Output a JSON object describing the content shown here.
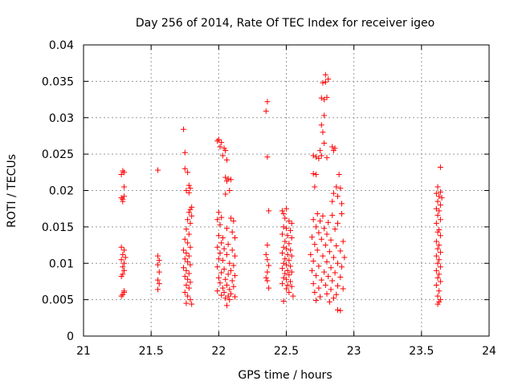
{
  "chart_data": {
    "type": "scatter",
    "title": "Day 256 of 2014, Rate Of TEC Index for receiver igeo",
    "xlabel": "GPS time / hours",
    "ylabel": "ROTI / TECUs",
    "xlim": [
      21,
      24
    ],
    "ylim": [
      0,
      0.04
    ],
    "xticks": [
      21,
      21.5,
      22,
      22.5,
      23,
      23.5,
      24
    ],
    "xtick_labels": [
      "21",
      "21.5",
      "22",
      "22.5",
      "23",
      "23.5",
      "24"
    ],
    "yticks": [
      0,
      0.005,
      0.01,
      0.015,
      0.02,
      0.025,
      0.03,
      0.035,
      0.04
    ],
    "ytick_labels": [
      "0",
      "0.005",
      "0.01",
      "0.015",
      "0.02",
      "0.025",
      "0.03",
      "0.035",
      "0.04"
    ],
    "grid": true,
    "marker": "+",
    "marker_color": "#ff0000",
    "series": [
      {
        "name": "ROTI",
        "points": [
          [
            21.28,
            0.0222
          ],
          [
            21.3,
            0.0225
          ],
          [
            21.29,
            0.0227
          ],
          [
            21.3,
            0.0205
          ],
          [
            21.28,
            0.019
          ],
          [
            21.29,
            0.0188
          ],
          [
            21.3,
            0.0192
          ],
          [
            21.29,
            0.0185
          ],
          [
            21.28,
            0.0122
          ],
          [
            21.3,
            0.0118
          ],
          [
            21.29,
            0.0112
          ],
          [
            21.31,
            0.0108
          ],
          [
            21.28,
            0.0105
          ],
          [
            21.3,
            0.01
          ],
          [
            21.29,
            0.0095
          ],
          [
            21.3,
            0.009
          ],
          [
            21.29,
            0.0085
          ],
          [
            21.28,
            0.0082
          ],
          [
            21.3,
            0.006
          ],
          [
            21.29,
            0.0057
          ],
          [
            21.28,
            0.0055
          ],
          [
            21.3,
            0.0062
          ],
          [
            21.55,
            0.0228
          ],
          [
            21.55,
            0.011
          ],
          [
            21.56,
            0.0104
          ],
          [
            21.55,
            0.0098
          ],
          [
            21.56,
            0.0088
          ],
          [
            21.55,
            0.0077
          ],
          [
            21.56,
            0.0072
          ],
          [
            21.55,
            0.0064
          ],
          [
            21.74,
            0.0284
          ],
          [
            21.75,
            0.0252
          ],
          [
            21.75,
            0.023
          ],
          [
            21.77,
            0.0225
          ],
          [
            21.78,
            0.0207
          ],
          [
            21.79,
            0.0203
          ],
          [
            21.76,
            0.02
          ],
          [
            21.78,
            0.0197
          ],
          [
            21.8,
            0.0177
          ],
          [
            21.79,
            0.0174
          ],
          [
            21.78,
            0.017
          ],
          [
            21.8,
            0.0165
          ],
          [
            21.77,
            0.016
          ],
          [
            21.79,
            0.0155
          ],
          [
            21.76,
            0.0147
          ],
          [
            21.78,
            0.014
          ],
          [
            21.75,
            0.0133
          ],
          [
            21.77,
            0.0128
          ],
          [
            21.79,
            0.0122
          ],
          [
            21.74,
            0.0118
          ],
          [
            21.76,
            0.0114
          ],
          [
            21.78,
            0.011
          ],
          [
            21.75,
            0.0106
          ],
          [
            21.77,
            0.0102
          ],
          [
            21.79,
            0.0098
          ],
          [
            21.74,
            0.0094
          ],
          [
            21.76,
            0.009
          ],
          [
            21.78,
            0.0086
          ],
          [
            21.75,
            0.0082
          ],
          [
            21.77,
            0.0078
          ],
          [
            21.79,
            0.0074
          ],
          [
            21.76,
            0.007
          ],
          [
            21.78,
            0.0066
          ],
          [
            21.75,
            0.006
          ],
          [
            21.77,
            0.0055
          ],
          [
            21.79,
            0.005
          ],
          [
            21.76,
            0.0045
          ],
          [
            21.8,
            0.0044
          ],
          [
            21.99,
            0.0268
          ],
          [
            22.0,
            0.027
          ],
          [
            22.02,
            0.0266
          ],
          [
            22.01,
            0.026
          ],
          [
            22.04,
            0.0258
          ],
          [
            22.05,
            0.0255
          ],
          [
            22.03,
            0.0248
          ],
          [
            22.06,
            0.0242
          ],
          [
            22.05,
            0.0218
          ],
          [
            22.07,
            0.0216
          ],
          [
            22.09,
            0.0215
          ],
          [
            22.06,
            0.0213
          ],
          [
            22.08,
            0.02
          ],
          [
            22.05,
            0.0195
          ],
          [
            22.0,
            0.017
          ],
          [
            21.99,
            0.016
          ],
          [
            22.02,
            0.0163
          ],
          [
            22.09,
            0.0162
          ],
          [
            22.11,
            0.0158
          ],
          [
            22.01,
            0.0153
          ],
          [
            22.06,
            0.0148
          ],
          [
            22.1,
            0.0143
          ],
          [
            22.0,
            0.0138
          ],
          [
            22.03,
            0.0135
          ],
          [
            22.12,
            0.0135
          ],
          [
            22.02,
            0.0128
          ],
          [
            22.07,
            0.0126
          ],
          [
            21.99,
            0.0122
          ],
          [
            22.04,
            0.012
          ],
          [
            22.1,
            0.0118
          ],
          [
            22.01,
            0.0114
          ],
          [
            22.06,
            0.0112
          ],
          [
            22.12,
            0.011
          ],
          [
            22.0,
            0.0106
          ],
          [
            22.03,
            0.0104
          ],
          [
            22.08,
            0.01
          ],
          [
            22.11,
            0.0097
          ],
          [
            21.99,
            0.0095
          ],
          [
            22.04,
            0.0092
          ],
          [
            22.09,
            0.009
          ],
          [
            22.02,
            0.0087
          ],
          [
            22.07,
            0.0085
          ],
          [
            22.12,
            0.0083
          ],
          [
            22.0,
            0.008
          ],
          [
            22.05,
            0.0078
          ],
          [
            22.1,
            0.0076
          ],
          [
            22.01,
            0.0073
          ],
          [
            22.06,
            0.007
          ],
          [
            22.11,
            0.0068
          ],
          [
            22.03,
            0.0066
          ],
          [
            22.08,
            0.0064
          ],
          [
            21.99,
            0.0062
          ],
          [
            22.04,
            0.006
          ],
          [
            22.09,
            0.0058
          ],
          [
            22.02,
            0.0056
          ],
          [
            22.07,
            0.0055
          ],
          [
            22.12,
            0.0054
          ],
          [
            22.05,
            0.0052
          ],
          [
            22.08,
            0.005
          ],
          [
            22.06,
            0.0042
          ],
          [
            22.36,
            0.0322
          ],
          [
            22.35,
            0.0309
          ],
          [
            22.36,
            0.0246
          ],
          [
            22.37,
            0.0172
          ],
          [
            22.36,
            0.0125
          ],
          [
            22.35,
            0.0112
          ],
          [
            22.36,
            0.0105
          ],
          [
            22.37,
            0.0097
          ],
          [
            22.36,
            0.0088
          ],
          [
            22.35,
            0.008
          ],
          [
            22.36,
            0.0076
          ],
          [
            22.37,
            0.0066
          ],
          [
            22.47,
            0.0172
          ],
          [
            22.48,
            0.0168
          ],
          [
            22.5,
            0.0175
          ],
          [
            22.49,
            0.0162
          ],
          [
            22.52,
            0.0158
          ],
          [
            22.54,
            0.0155
          ],
          [
            22.48,
            0.015
          ],
          [
            22.5,
            0.0148
          ],
          [
            22.53,
            0.0145
          ],
          [
            22.47,
            0.014
          ],
          [
            22.51,
            0.0138
          ],
          [
            22.54,
            0.0135
          ],
          [
            22.49,
            0.013
          ],
          [
            22.52,
            0.0127
          ],
          [
            22.48,
            0.0122
          ],
          [
            22.5,
            0.012
          ],
          [
            22.53,
            0.0118
          ],
          [
            22.47,
            0.0114
          ],
          [
            22.51,
            0.0112
          ],
          [
            22.54,
            0.011
          ],
          [
            22.49,
            0.0106
          ],
          [
            22.52,
            0.0104
          ],
          [
            22.48,
            0.01
          ],
          [
            22.5,
            0.0098
          ],
          [
            22.53,
            0.0096
          ],
          [
            22.47,
            0.0093
          ],
          [
            22.51,
            0.009
          ],
          [
            22.54,
            0.0088
          ],
          [
            22.49,
            0.0086
          ],
          [
            22.52,
            0.0084
          ],
          [
            22.48,
            0.008
          ],
          [
            22.5,
            0.0078
          ],
          [
            22.53,
            0.0075
          ],
          [
            22.47,
            0.0072
          ],
          [
            22.51,
            0.007
          ],
          [
            22.54,
            0.0068
          ],
          [
            22.5,
            0.0065
          ],
          [
            22.52,
            0.006
          ],
          [
            22.55,
            0.0055
          ],
          [
            22.48,
            0.0048
          ],
          [
            22.79,
            0.0359
          ],
          [
            22.81,
            0.0353
          ],
          [
            22.79,
            0.0349
          ],
          [
            22.77,
            0.0348
          ],
          [
            22.76,
            0.0327
          ],
          [
            22.78,
            0.0325
          ],
          [
            22.8,
            0.0328
          ],
          [
            22.78,
            0.0303
          ],
          [
            22.76,
            0.029
          ],
          [
            22.77,
            0.028
          ],
          [
            22.78,
            0.0265
          ],
          [
            22.75,
            0.0255
          ],
          [
            22.84,
            0.026
          ],
          [
            22.86,
            0.0258
          ],
          [
            22.85,
            0.0255
          ],
          [
            22.7,
            0.0248
          ],
          [
            22.72,
            0.0246
          ],
          [
            22.74,
            0.0244
          ],
          [
            22.76,
            0.0248
          ],
          [
            22.8,
            0.0245
          ],
          [
            22.7,
            0.0223
          ],
          [
            22.72,
            0.0222
          ],
          [
            22.89,
            0.0222
          ],
          [
            22.71,
            0.0205
          ],
          [
            22.87,
            0.0205
          ],
          [
            22.9,
            0.0203
          ],
          [
            22.85,
            0.0196
          ],
          [
            22.88,
            0.0192
          ],
          [
            22.84,
            0.0185
          ],
          [
            22.91,
            0.0182
          ],
          [
            22.73,
            0.0168
          ],
          [
            22.77,
            0.0165
          ],
          [
            22.84,
            0.0166
          ],
          [
            22.91,
            0.0168
          ],
          [
            22.7,
            0.016
          ],
          [
            22.75,
            0.0158
          ],
          [
            22.81,
            0.0156
          ],
          [
            22.88,
            0.0155
          ],
          [
            22.72,
            0.015
          ],
          [
            22.78,
            0.0148
          ],
          [
            22.86,
            0.0147
          ],
          [
            22.74,
            0.0142
          ],
          [
            22.8,
            0.014
          ],
          [
            22.69,
            0.0136
          ],
          [
            22.76,
            0.0133
          ],
          [
            22.83,
            0.0132
          ],
          [
            22.92,
            0.013
          ],
          [
            22.71,
            0.0126
          ],
          [
            22.79,
            0.0125
          ],
          [
            22.87,
            0.0124
          ],
          [
            22.73,
            0.0118
          ],
          [
            22.82,
            0.0116
          ],
          [
            22.9,
            0.0117
          ],
          [
            22.68,
            0.0112
          ],
          [
            22.77,
            0.011
          ],
          [
            22.85,
            0.0108
          ],
          [
            22.93,
            0.0108
          ],
          [
            22.7,
            0.0103
          ],
          [
            22.8,
            0.0102
          ],
          [
            22.88,
            0.01
          ],
          [
            22.74,
            0.0096
          ],
          [
            22.83,
            0.0094
          ],
          [
            22.91,
            0.0095
          ],
          [
            22.69,
            0.009
          ],
          [
            22.78,
            0.0088
          ],
          [
            22.86,
            0.0087
          ],
          [
            22.72,
            0.0083
          ],
          [
            22.81,
            0.0082
          ],
          [
            22.9,
            0.0081
          ],
          [
            22.76,
            0.0077
          ],
          [
            22.84,
            0.0076
          ],
          [
            22.7,
            0.0072
          ],
          [
            22.79,
            0.007
          ],
          [
            22.88,
            0.0069
          ],
          [
            22.74,
            0.0066
          ],
          [
            22.83,
            0.0064
          ],
          [
            22.92,
            0.0065
          ],
          [
            22.71,
            0.006
          ],
          [
            22.8,
            0.0058
          ],
          [
            22.87,
            0.0057
          ],
          [
            22.75,
            0.0054
          ],
          [
            22.85,
            0.0052
          ],
          [
            22.72,
            0.0049
          ],
          [
            22.82,
            0.0047
          ],
          [
            22.88,
            0.0036
          ],
          [
            22.9,
            0.0035
          ],
          [
            23.64,
            0.0232
          ],
          [
            23.62,
            0.0205
          ],
          [
            23.64,
            0.0198
          ],
          [
            23.61,
            0.0196
          ],
          [
            23.63,
            0.0192
          ],
          [
            23.65,
            0.019
          ],
          [
            23.62,
            0.0185
          ],
          [
            23.64,
            0.018
          ],
          [
            23.61,
            0.0175
          ],
          [
            23.63,
            0.0172
          ],
          [
            23.62,
            0.0166
          ],
          [
            23.64,
            0.016
          ],
          [
            23.61,
            0.0155
          ],
          [
            23.63,
            0.0146
          ],
          [
            23.62,
            0.0143
          ],
          [
            23.64,
            0.0138
          ],
          [
            23.61,
            0.013
          ],
          [
            23.63,
            0.0125
          ],
          [
            23.62,
            0.012
          ],
          [
            23.64,
            0.0115
          ],
          [
            23.61,
            0.011
          ],
          [
            23.63,
            0.0105
          ],
          [
            23.62,
            0.01
          ],
          [
            23.64,
            0.0095
          ],
          [
            23.61,
            0.009
          ],
          [
            23.63,
            0.0085
          ],
          [
            23.62,
            0.008
          ],
          [
            23.64,
            0.0075
          ],
          [
            23.61,
            0.007
          ],
          [
            23.63,
            0.0062
          ],
          [
            23.62,
            0.0055
          ],
          [
            23.64,
            0.005
          ],
          [
            23.63,
            0.0047
          ],
          [
            23.62,
            0.0044
          ]
        ]
      }
    ]
  }
}
